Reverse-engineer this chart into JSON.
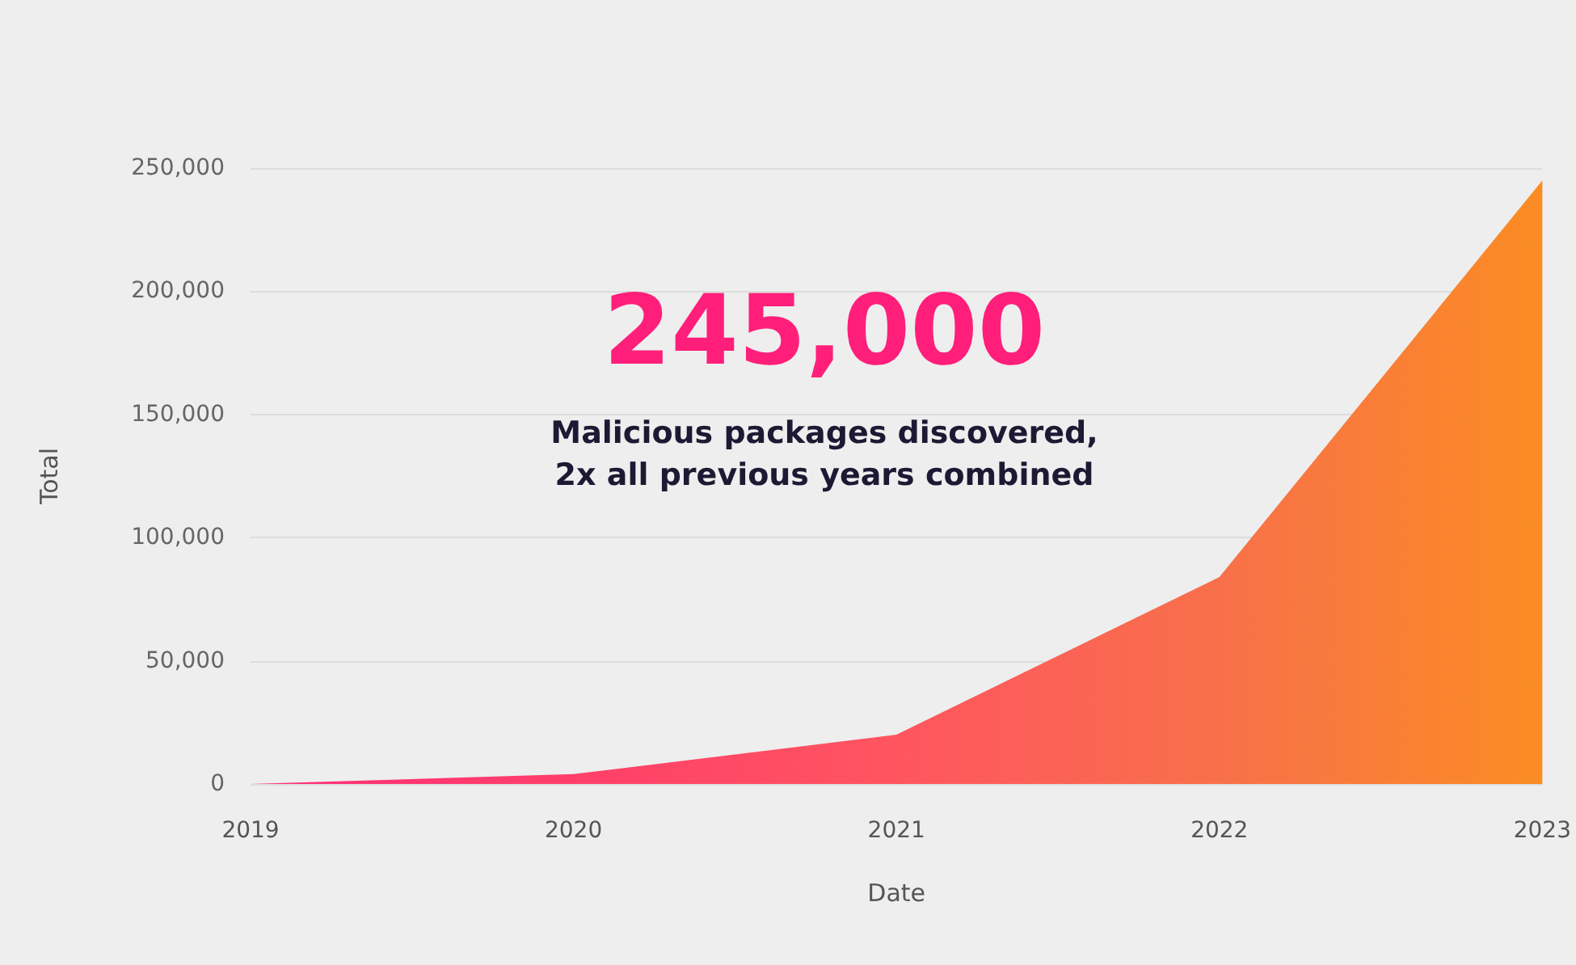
{
  "chart_data": {
    "type": "area",
    "xlabel": "Date",
    "ylabel": "Total",
    "categories": [
      "2019",
      "2020",
      "2021",
      "2022",
      "2023"
    ],
    "values": [
      0,
      4000,
      20000,
      84000,
      245000
    ],
    "colors": [
      "#ff2d78",
      "#ff3f6a",
      "#ff5560",
      "#f8704a",
      "#fb8c23"
    ],
    "ylim": [
      0,
      250000
    ],
    "yticks": [
      {
        "value": 0,
        "label": "0"
      },
      {
        "value": 50000,
        "label": "50,000"
      },
      {
        "value": 100000,
        "label": "100,000"
      },
      {
        "value": 150000,
        "label": "150,000"
      },
      {
        "value": 200000,
        "label": "200,000"
      },
      {
        "value": 250000,
        "label": "250,000"
      }
    ],
    "grid": "y",
    "annotations": [
      "245,000",
      "Malicious packages discovered,\n2x all previous years combined"
    ]
  }
}
